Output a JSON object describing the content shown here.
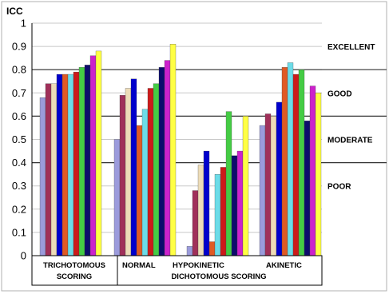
{
  "chart_data": {
    "type": "bar",
    "ylabel": "ICC",
    "ylim": [
      0,
      1
    ],
    "yticks": [
      "0",
      "0.1",
      "0.2",
      "0.3",
      "0.4",
      "0.5",
      "0.6",
      "0.7",
      "0.8",
      "0.9",
      "1"
    ],
    "grid": "horizontal",
    "categories": [
      "TRICHOTOMOUS SCORING",
      "NORMAL",
      "HYPOKINETIC",
      "AKINETIC"
    ],
    "category_labels": {
      "trichotomous_line1": "TRICHOTOMOUS",
      "trichotomous_line2": "SCORING",
      "normal": "NORMAL",
      "hypokinetic": "HYPOKINETIC",
      "akinetic": "AKINETIC",
      "group": "DICHOTOMOUS SCORING"
    },
    "bands": [
      {
        "label": "EXCELLENT",
        "at": 0.9
      },
      {
        "label": "GOOD",
        "at": 0.7
      },
      {
        "label": "MODERATE",
        "at": 0.5
      },
      {
        "label": "POOR",
        "at": 0.3
      }
    ],
    "thresholds": [
      0.4,
      0.6,
      0.8
    ],
    "colors": [
      "#9b9bdc",
      "#a0305a",
      "#eddcb8",
      "#0000cc",
      "#e05a24",
      "#6cdce8",
      "#cc1a1a",
      "#44cc44",
      "#0c0c6c",
      "#cc22cc",
      "#ffff44"
    ],
    "series": [
      {
        "values": [
          0.68,
          0.5,
          0.04,
          0.56
        ]
      },
      {
        "values": [
          0.74,
          0.69,
          0.28,
          0.61
        ]
      },
      {
        "values": [
          0.74,
          0.72,
          0.39,
          0.6
        ]
      },
      {
        "values": [
          0.78,
          0.76,
          0.45,
          0.66
        ]
      },
      {
        "values": [
          0.78,
          0.56,
          0.06,
          0.81
        ]
      },
      {
        "values": [
          0.78,
          0.63,
          0.35,
          0.83
        ]
      },
      {
        "values": [
          0.79,
          0.72,
          0.38,
          0.78
        ]
      },
      {
        "values": [
          0.81,
          0.74,
          0.62,
          0.8
        ]
      },
      {
        "values": [
          0.82,
          0.81,
          0.43,
          0.58
        ]
      },
      {
        "values": [
          0.86,
          0.84,
          0.45,
          0.73
        ]
      },
      {
        "values": [
          0.88,
          0.91,
          0.6,
          0.7
        ]
      }
    ]
  }
}
